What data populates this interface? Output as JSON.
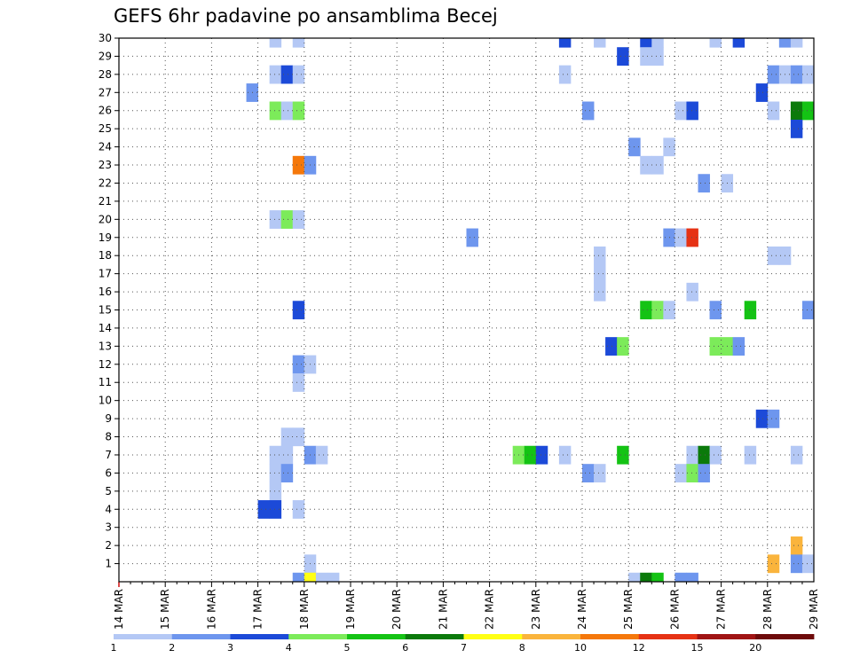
{
  "chart_data": {
    "type": "heatmap",
    "title": "GEFS 6hr padavine po ansamblima Becej",
    "xlabel": "",
    "ylabel": "",
    "x_tick_labels": [
      "14 MAR",
      "15 MAR",
      "16 MAR",
      "17 MAR",
      "18 MAR",
      "19 MAR",
      "20 MAR",
      "21 MAR",
      "22 MAR",
      "23 MAR",
      "24 MAR",
      "25 MAR",
      "26 MAR",
      "27 MAR",
      "28 MAR",
      "29 MAR"
    ],
    "y_tick_labels": [
      "1",
      "2",
      "3",
      "4",
      "5",
      "6",
      "7",
      "8",
      "9",
      "10",
      "11",
      "12",
      "13",
      "14",
      "15",
      "16",
      "17",
      "18",
      "19",
      "20",
      "21",
      "22",
      "23",
      "24",
      "25",
      "26",
      "27",
      "28",
      "29",
      "30"
    ],
    "x_range": [
      "14 MAR 00z",
      "29 MAR 00z"
    ],
    "x_step_hours": 6,
    "y_range": [
      0,
      30
    ],
    "grid": true,
    "legend": "colorbar-bottom",
    "colorbar": {
      "labels": [
        "1",
        "2",
        "3",
        "4",
        "5",
        "6",
        "7",
        "8",
        "10",
        "12",
        "15",
        "20"
      ],
      "colors": [
        "#b4c8f5",
        "#6e96ee",
        "#1c4ad8",
        "#7ceb5a",
        "#14c314",
        "#0b7a0b",
        "#ffff14",
        "#fab43c",
        "#f5780a",
        "#e63214",
        "#a01414",
        "#6e0a0a"
      ]
    },
    "cells": [
      {
        "time": "17 MAR 06z",
        "member": 30,
        "level": 1
      },
      {
        "time": "17 MAR 18z",
        "member": 30,
        "level": 1
      },
      {
        "time": "23 MAR 12z",
        "member": 30,
        "level": 3
      },
      {
        "time": "24 MAR 06z",
        "member": 30,
        "level": 1
      },
      {
        "time": "25 MAR 06z",
        "member": 30,
        "level": 3
      },
      {
        "time": "25 MAR 12z",
        "member": 30,
        "level": 1
      },
      {
        "time": "26 MAR 18z",
        "member": 30,
        "level": 1
      },
      {
        "time": "27 MAR 06z",
        "member": 30,
        "level": 3
      },
      {
        "time": "28 MAR 06z",
        "member": 30,
        "level": 2
      },
      {
        "time": "28 MAR 12z",
        "member": 30,
        "level": 1
      },
      {
        "time": "24 MAR 18z",
        "member": 29,
        "level": 3
      },
      {
        "time": "25 MAR 06z",
        "member": 29,
        "level": 1
      },
      {
        "time": "25 MAR 12z",
        "member": 29,
        "level": 1
      },
      {
        "time": "17 MAR 06z",
        "member": 28,
        "level": 1
      },
      {
        "time": "17 MAR 12z",
        "member": 28,
        "level": 3
      },
      {
        "time": "17 MAR 18z",
        "member": 28,
        "level": 1
      },
      {
        "time": "23 MAR 12z",
        "member": 28,
        "level": 1
      },
      {
        "time": "28 MAR 00z",
        "member": 28,
        "level": 2
      },
      {
        "time": "28 MAR 06z",
        "member": 28,
        "level": 1
      },
      {
        "time": "28 MAR 12z",
        "member": 28,
        "level": 2
      },
      {
        "time": "28 MAR 18z",
        "member": 28,
        "level": 1
      },
      {
        "time": "16 MAR 18z",
        "member": 27,
        "level": 2
      },
      {
        "time": "27 MAR 18z",
        "member": 27,
        "level": 3
      },
      {
        "time": "17 MAR 06z",
        "member": 26,
        "level": 4
      },
      {
        "time": "17 MAR 12z",
        "member": 26,
        "level": 1
      },
      {
        "time": "17 MAR 18z",
        "member": 26,
        "level": 4
      },
      {
        "time": "24 MAR 00z",
        "member": 26,
        "level": 2
      },
      {
        "time": "26 MAR 00z",
        "member": 26,
        "level": 1
      },
      {
        "time": "26 MAR 06z",
        "member": 26,
        "level": 3
      },
      {
        "time": "28 MAR 00z",
        "member": 26,
        "level": 1
      },
      {
        "time": "28 MAR 12z",
        "member": 26,
        "level": 6
      },
      {
        "time": "28 MAR 18z",
        "member": 26,
        "level": 5
      },
      {
        "time": "28 MAR 12z",
        "member": 25,
        "level": 3
      },
      {
        "time": "25 MAR 00z",
        "member": 24,
        "level": 2
      },
      {
        "time": "25 MAR 18z",
        "member": 24,
        "level": 1
      },
      {
        "time": "17 MAR 18z",
        "member": 23,
        "level": 9
      },
      {
        "time": "18 MAR 00z",
        "member": 23,
        "level": 2
      },
      {
        "time": "25 MAR 06z",
        "member": 23,
        "level": 1
      },
      {
        "time": "25 MAR 12z",
        "member": 23,
        "level": 1
      },
      {
        "time": "26 MAR 12z",
        "member": 22,
        "level": 2
      },
      {
        "time": "27 MAR 00z",
        "member": 22,
        "level": 1
      },
      {
        "time": "17 MAR 06z",
        "member": 20,
        "level": 1
      },
      {
        "time": "17 MAR 12z",
        "member": 20,
        "level": 4
      },
      {
        "time": "17 MAR 18z",
        "member": 20,
        "level": 1
      },
      {
        "time": "21 MAR 12z",
        "member": 19,
        "level": 2
      },
      {
        "time": "25 MAR 18z",
        "member": 19,
        "level": 2
      },
      {
        "time": "26 MAR 00z",
        "member": 19,
        "level": 1
      },
      {
        "time": "26 MAR 06z",
        "member": 19,
        "level": 10
      },
      {
        "time": "24 MAR 06z",
        "member": 18,
        "level": 1
      },
      {
        "time": "28 MAR 00z",
        "member": 18,
        "level": 1
      },
      {
        "time": "28 MAR 06z",
        "member": 18,
        "level": 1
      },
      {
        "time": "24 MAR 06z",
        "member": 17,
        "level": 1
      },
      {
        "time": "24 MAR 06z",
        "member": 16,
        "level": 1
      },
      {
        "time": "26 MAR 06z",
        "member": 16,
        "level": 1
      },
      {
        "time": "17 MAR 18z",
        "member": 15,
        "level": 3
      },
      {
        "time": "25 MAR 06z",
        "member": 15,
        "level": 5
      },
      {
        "time": "25 MAR 12z",
        "member": 15,
        "level": 4
      },
      {
        "time": "25 MAR 18z",
        "member": 15,
        "level": 1
      },
      {
        "time": "26 MAR 18z",
        "member": 15,
        "level": 2
      },
      {
        "time": "27 MAR 12z",
        "member": 15,
        "level": 5
      },
      {
        "time": "28 MAR 18z",
        "member": 15,
        "level": 2
      },
      {
        "time": "24 MAR 12z",
        "member": 13,
        "level": 3
      },
      {
        "time": "24 MAR 18z",
        "member": 13,
        "level": 4
      },
      {
        "time": "26 MAR 18z",
        "member": 13,
        "level": 4
      },
      {
        "time": "27 MAR 00z",
        "member": 13,
        "level": 4
      },
      {
        "time": "27 MAR 06z",
        "member": 13,
        "level": 2
      },
      {
        "time": "17 MAR 18z",
        "member": 12,
        "level": 2
      },
      {
        "time": "18 MAR 00z",
        "member": 12,
        "level": 1
      },
      {
        "time": "17 MAR 18z",
        "member": 11,
        "level": 1
      },
      {
        "time": "27 MAR 18z",
        "member": 9,
        "level": 3
      },
      {
        "time": "28 MAR 00z",
        "member": 9,
        "level": 2
      },
      {
        "time": "17 MAR 12z",
        "member": 8,
        "level": 1
      },
      {
        "time": "17 MAR 18z",
        "member": 8,
        "level": 1
      },
      {
        "time": "17 MAR 06z",
        "member": 7,
        "level": 1
      },
      {
        "time": "17 MAR 12z",
        "member": 7,
        "level": 1
      },
      {
        "time": "18 MAR 00z",
        "member": 7,
        "level": 2
      },
      {
        "time": "18 MAR 06z",
        "member": 7,
        "level": 1
      },
      {
        "time": "22 MAR 12z",
        "member": 7,
        "level": 4
      },
      {
        "time": "22 MAR 18z",
        "member": 7,
        "level": 5
      },
      {
        "time": "23 MAR 00z",
        "member": 7,
        "level": 3
      },
      {
        "time": "23 MAR 12z",
        "member": 7,
        "level": 1
      },
      {
        "time": "24 MAR 18z",
        "member": 7,
        "level": 5
      },
      {
        "time": "26 MAR 06z",
        "member": 7,
        "level": 1
      },
      {
        "time": "26 MAR 12z",
        "member": 7,
        "level": 6
      },
      {
        "time": "26 MAR 18z",
        "member": 7,
        "level": 1
      },
      {
        "time": "27 MAR 12z",
        "member": 7,
        "level": 1
      },
      {
        "time": "28 MAR 12z",
        "member": 7,
        "level": 1
      },
      {
        "time": "17 MAR 06z",
        "member": 6,
        "level": 1
      },
      {
        "time": "17 MAR 12z",
        "member": 6,
        "level": 2
      },
      {
        "time": "24 MAR 00z",
        "member": 6,
        "level": 2
      },
      {
        "time": "24 MAR 06z",
        "member": 6,
        "level": 1
      },
      {
        "time": "26 MAR 00z",
        "member": 6,
        "level": 1
      },
      {
        "time": "26 MAR 06z",
        "member": 6,
        "level": 4
      },
      {
        "time": "26 MAR 12z",
        "member": 6,
        "level": 2
      },
      {
        "time": "17 MAR 06z",
        "member": 5,
        "level": 1
      },
      {
        "time": "17 MAR 00z",
        "member": 4,
        "level": 3
      },
      {
        "time": "17 MAR 06z",
        "member": 4,
        "level": 3
      },
      {
        "time": "17 MAR 18z",
        "member": 4,
        "level": 1
      },
      {
        "time": "28 MAR 12z",
        "member": 2,
        "level": 8
      },
      {
        "time": "18 MAR 00z",
        "member": 1,
        "level": 1
      },
      {
        "time": "28 MAR 00z",
        "member": 1,
        "level": 8
      },
      {
        "time": "28 MAR 12z",
        "member": 1,
        "level": 2
      },
      {
        "time": "28 MAR 18z",
        "member": 1,
        "level": 1
      },
      {
        "time": "17 MAR 18z",
        "member": 0,
        "level": 2
      },
      {
        "time": "18 MAR 00z",
        "member": 0,
        "level": 7
      },
      {
        "time": "18 MAR 06z",
        "member": 0,
        "level": 1
      },
      {
        "time": "18 MAR 12z",
        "member": 0,
        "level": 1
      },
      {
        "time": "25 MAR 00z",
        "member": 0,
        "level": 1
      },
      {
        "time": "25 MAR 06z",
        "member": 0,
        "level": 6
      },
      {
        "time": "25 MAR 12z",
        "member": 0,
        "level": 5
      },
      {
        "time": "26 MAR 00z",
        "member": 0,
        "level": 2
      },
      {
        "time": "26 MAR 06z",
        "member": 0,
        "level": 2
      }
    ]
  }
}
